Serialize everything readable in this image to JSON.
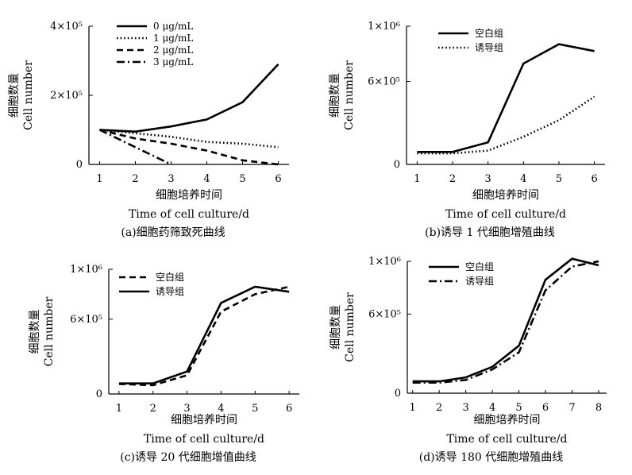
{
  "colors": {
    "ink": "#000000",
    "background": "#ffffff"
  },
  "chart_data": [
    {
      "type": "line",
      "caption": "(a)细胞药筛致死曲线",
      "ylabel_cn": "细胞数量",
      "ylabel_en": "Cell number",
      "xlabel_cn": "细胞培养时间",
      "xlabel_en": "Time of cell culture/d",
      "x": [
        1,
        2,
        3,
        4,
        5,
        6
      ],
      "xlim": [
        0.7,
        6.3
      ],
      "ylim": [
        0,
        400000
      ],
      "yticks": [
        0,
        200000,
        400000
      ],
      "ytick_labels": [
        "0",
        "2×10⁵",
        "4×10⁵"
      ],
      "legend_position": "top-left",
      "series": [
        {
          "name": "0 μg/mL",
          "style": "solid",
          "values": [
            100000,
            95000,
            110000,
            130000,
            180000,
            290000
          ]
        },
        {
          "name": "1 μg/mL",
          "style": "dotted",
          "values": [
            100000,
            90000,
            80000,
            65000,
            60000,
            50000
          ]
        },
        {
          "name": "2 μg/mL",
          "style": "dashed",
          "values": [
            100000,
            75000,
            60000,
            40000,
            12000,
            0
          ]
        },
        {
          "name": "3 μg/mL",
          "style": "dashdot",
          "values": [
            100000,
            50000,
            0,
            null,
            null,
            null
          ]
        }
      ]
    },
    {
      "type": "line",
      "caption": "(b)诱导 1 代细胞增殖曲线",
      "ylabel_cn": "细胞数量",
      "ylabel_en": "Cell number",
      "xlabel_cn": "细胞培养时间",
      "xlabel_en": "Time of cell culture/d",
      "x": [
        1,
        2,
        3,
        4,
        5,
        6
      ],
      "xlim": [
        0.7,
        6.3
      ],
      "ylim": [
        0,
        1000000
      ],
      "yticks": [
        0,
        600000,
        1000000
      ],
      "ytick_labels": [
        "0",
        "6×10⁵",
        "1×10⁶"
      ],
      "legend_position": "top-left",
      "series": [
        {
          "name": "空白组",
          "style": "solid",
          "values": [
            90000,
            90000,
            160000,
            730000,
            870000,
            820000
          ]
        },
        {
          "name": "诱导组",
          "style": "dotted",
          "values": [
            80000,
            80000,
            100000,
            200000,
            320000,
            490000
          ]
        }
      ]
    },
    {
      "type": "line",
      "caption": "(c)诱导 20 代细胞增值曲线",
      "ylabel_cn": "细胞数量",
      "ylabel_en": "Cell number",
      "xlabel_cn": "细胞培养时间",
      "xlabel_en": "Time of cell culture/d",
      "x": [
        1,
        2,
        3,
        4,
        5,
        6
      ],
      "xlim": [
        0.7,
        6.3
      ],
      "ylim": [
        0,
        1000000
      ],
      "yticks": [
        0,
        600000,
        1000000
      ],
      "ytick_labels": [
        "0",
        "6×10⁵",
        "1×10⁶"
      ],
      "legend_position": "top-left",
      "series": [
        {
          "name": "空白组",
          "style": "dashed",
          "values": [
            80000,
            70000,
            150000,
            660000,
            800000,
            860000
          ]
        },
        {
          "name": "诱导组",
          "style": "solid",
          "values": [
            85000,
            85000,
            180000,
            730000,
            860000,
            820000
          ]
        }
      ]
    },
    {
      "type": "line",
      "caption": "(d)诱导 180 代细胞增殖曲线",
      "ylabel_cn": "细胞数量",
      "ylabel_en": "Cell number",
      "xlabel_cn": "细胞培养时间",
      "xlabel_en": "Time of cell culture/d",
      "x": [
        1,
        2,
        3,
        4,
        5,
        6,
        7,
        8
      ],
      "xlim": [
        0.8,
        8.3
      ],
      "ylim": [
        0,
        1000000
      ],
      "yticks": [
        0,
        600000,
        1000000
      ],
      "ytick_labels": [
        "0",
        "6×10⁵",
        "1×10⁶"
      ],
      "legend_position": "top-left",
      "series": [
        {
          "name": "空白组",
          "style": "solid",
          "values": [
            90000,
            90000,
            120000,
            200000,
            360000,
            860000,
            1020000,
            970000
          ]
        },
        {
          "name": "诱导组",
          "style": "dashdot",
          "values": [
            80000,
            80000,
            100000,
            180000,
            310000,
            780000,
            960000,
            1000000
          ]
        }
      ]
    }
  ]
}
